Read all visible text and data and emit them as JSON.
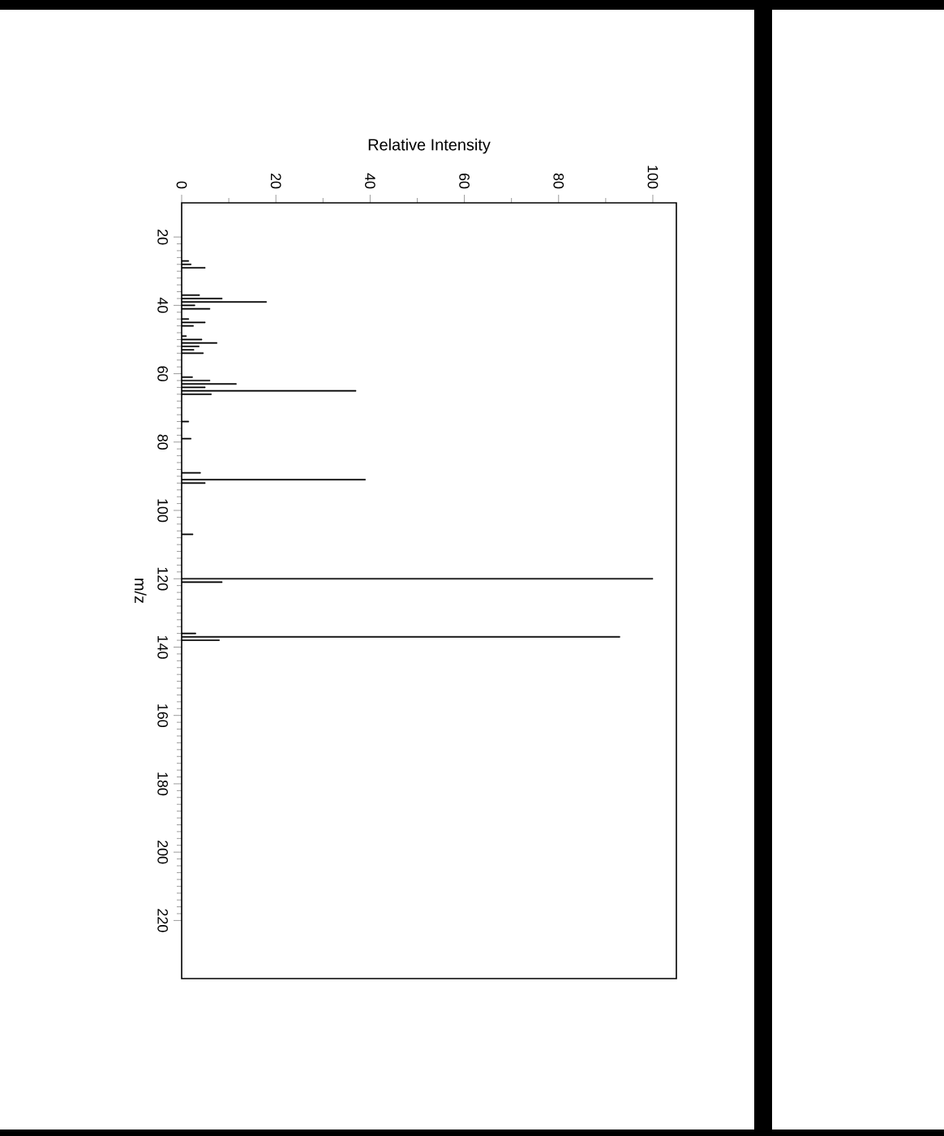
{
  "chart_data": {
    "type": "bar",
    "orientation": "horizontal",
    "xlabel": "Relative Intensity",
    "ylabel": "m/z",
    "color": "#000000",
    "x": [
      27,
      28,
      29,
      37,
      38,
      39,
      40,
      41,
      44,
      45,
      46,
      49,
      50,
      51,
      52,
      53,
      54,
      61,
      62,
      63,
      64,
      65,
      66,
      74,
      79,
      89,
      91,
      92,
      107,
      120,
      121,
      136,
      137,
      138
    ],
    "values": [
      1.5,
      2,
      5,
      3.8,
      8.6,
      18,
      2.8,
      6,
      1.5,
      5,
      2.5,
      1,
      4.3,
      7.5,
      3.7,
      2.6,
      4.6,
      2.3,
      6,
      11.6,
      5,
      37,
      6.3,
      1.5,
      2,
      4,
      39,
      5,
      2.4,
      100,
      8.6,
      3,
      93,
      8
    ],
    "xlim": [
      0,
      105
    ],
    "xticks": [
      0,
      20,
      40,
      60,
      80,
      100
    ],
    "ylim": [
      237,
      10
    ],
    "yticks": [
      20,
      40,
      60,
      80,
      100,
      120,
      140,
      160,
      180,
      200,
      220
    ]
  }
}
